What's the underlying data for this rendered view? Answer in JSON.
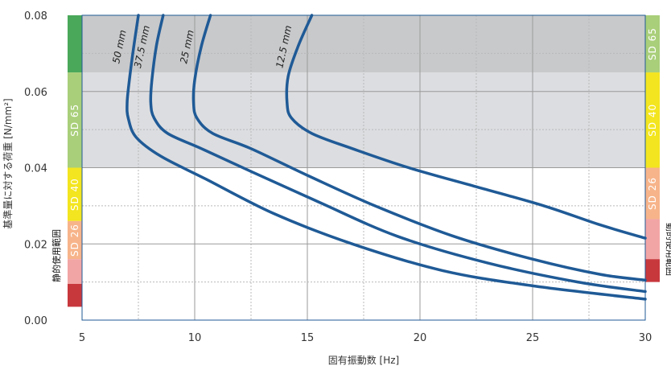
{
  "chart_data": {
    "type": "line",
    "xlabel": "固有振動数 [Hz]",
    "ylabel": "基準量に対する荷重 [N/mm²]",
    "xlim": [
      5,
      30
    ],
    "ylim": [
      0,
      0.08
    ],
    "xticks": [
      5,
      10,
      15,
      20,
      25,
      30
    ],
    "yticks": [
      0.0,
      0.02,
      0.04,
      0.06,
      0.08
    ],
    "xtick_labels": [
      "5",
      "10",
      "15",
      "20",
      "25",
      "30"
    ],
    "ytick_labels": [
      "0.00",
      "0.02",
      "0.04",
      "0.06",
      "0.08"
    ],
    "grid": true,
    "shaded_regions": [
      {
        "y_from": 0.065,
        "y_to": 0.08,
        "color": "#c8c9cb"
      },
      {
        "y_from": 0.04,
        "y_to": 0.065,
        "color": "#dcdde0"
      }
    ],
    "series": [
      {
        "name": "50 mm",
        "color": "#1f5a96",
        "x": [
          7.5,
          7.3,
          7.1,
          7.0,
          7.05,
          7.4,
          8.5,
          10.5,
          13.5,
          17.0,
          21.0,
          25.0,
          30.0
        ],
        "y": [
          0.08,
          0.072,
          0.063,
          0.057,
          0.053,
          0.048,
          0.043,
          0.037,
          0.028,
          0.02,
          0.013,
          0.009,
          0.0055
        ]
      },
      {
        "name": "37.5 mm",
        "color": "#1f5a96",
        "x": [
          8.6,
          8.3,
          8.1,
          8.05,
          8.2,
          8.8,
          10.3,
          12.5,
          15.5,
          19.0,
          23.0,
          27.0,
          30.0
        ],
        "y": [
          0.08,
          0.072,
          0.063,
          0.057,
          0.053,
          0.049,
          0.045,
          0.039,
          0.031,
          0.022,
          0.015,
          0.01,
          0.0075
        ]
      },
      {
        "name": "25 mm",
        "color": "#1f5a96",
        "x": [
          10.7,
          10.3,
          10.0,
          9.95,
          10.1,
          10.8,
          12.5,
          15.0,
          18.0,
          21.5,
          25.0,
          28.0,
          30.0
        ],
        "y": [
          0.08,
          0.072,
          0.063,
          0.057,
          0.053,
          0.049,
          0.045,
          0.038,
          0.03,
          0.022,
          0.016,
          0.012,
          0.0105
        ]
      },
      {
        "name": "12.5 mm",
        "color": "#1f5a96",
        "x": [
          15.2,
          14.6,
          14.15,
          14.1,
          14.3,
          15.2,
          17.0,
          19.5,
          22.5,
          25.5,
          28.0,
          30.0
        ],
        "y": [
          0.08,
          0.072,
          0.064,
          0.057,
          0.053,
          0.049,
          0.045,
          0.04,
          0.035,
          0.03,
          0.025,
          0.0215
        ]
      }
    ],
    "left_bands": [
      {
        "label": "",
        "from": 0.065,
        "to": 0.08,
        "color": "#4aa85a"
      },
      {
        "label": "SD 65",
        "from": 0.04,
        "to": 0.065,
        "color": "#a9cf7a"
      },
      {
        "label": "SD 40",
        "from": 0.026,
        "to": 0.04,
        "color": "#f3e51f"
      },
      {
        "label": "SD 26",
        "from": 0.016,
        "to": 0.026,
        "color": "#f7b48a"
      },
      {
        "label": "",
        "from": 0.0095,
        "to": 0.016,
        "color": "#f2a5a5"
      },
      {
        "label": "",
        "from": 0.0035,
        "to": 0.0095,
        "color": "#c7383d"
      }
    ],
    "right_bands": [
      {
        "label": "SD 65",
        "from": 0.065,
        "to": 0.08,
        "color": "#a9cf7a"
      },
      {
        "label": "SD 40",
        "from": 0.04,
        "to": 0.065,
        "color": "#f3e51f"
      },
      {
        "label": "SD 26",
        "from": 0.0265,
        "to": 0.04,
        "color": "#f7b48a"
      },
      {
        "label": "",
        "from": 0.016,
        "to": 0.0265,
        "color": "#f2a5a5"
      },
      {
        "label": "",
        "from": 0.01,
        "to": 0.016,
        "color": "#c7383d"
      }
    ],
    "left_static_label": "静的使用範囲",
    "right_static_label": "動的使用範囲"
  }
}
